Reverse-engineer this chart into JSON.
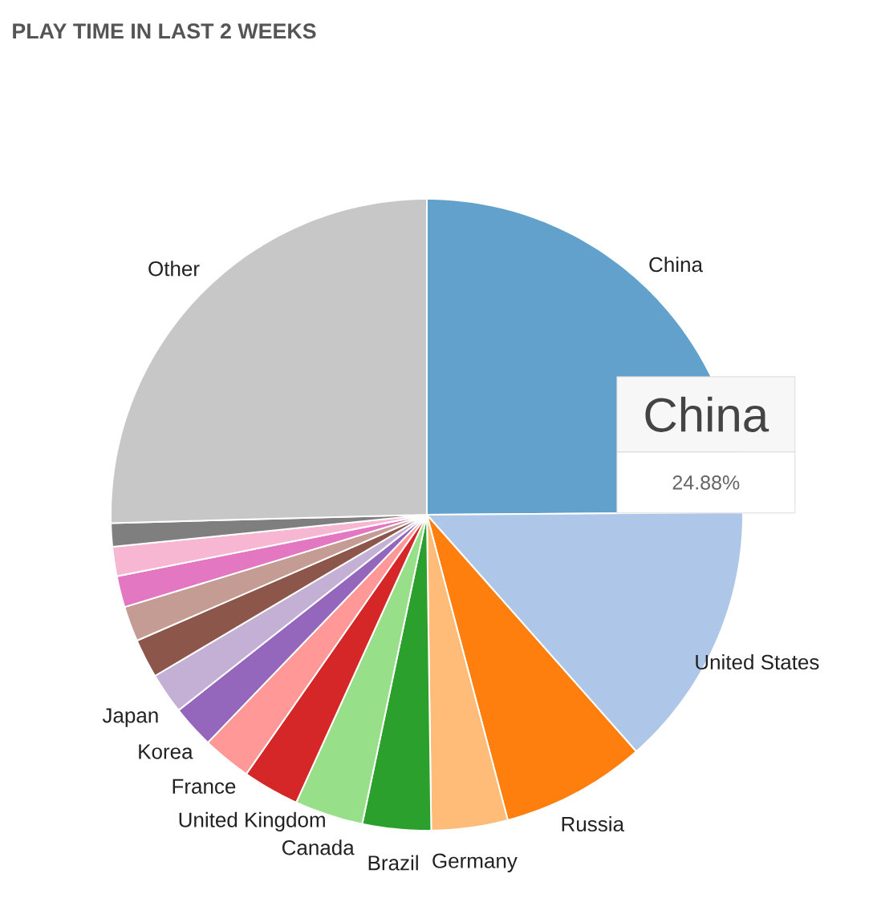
{
  "chart_data": {
    "type": "pie",
    "title": "PLAY TIME IN LAST 2 WEEKS",
    "categories": [
      "China",
      "United States",
      "Russia",
      "Germany",
      "Brazil",
      "Canada",
      "United Kingdom",
      "France",
      "Korea",
      "Japan",
      null,
      null,
      null,
      null,
      null,
      "Other"
    ],
    "values": [
      24.88,
      13.6,
      7.4,
      3.9,
      3.5,
      3.5,
      2.9,
      2.5,
      2.2,
      2.1,
      2.0,
      1.8,
      1.6,
      1.5,
      1.2,
      25.42
    ],
    "colors": [
      "#63a1cd",
      "#aec7e8",
      "#ff7f0e",
      "#ffbb78",
      "#2ca02c",
      "#98df8a",
      "#d62728",
      "#ff9896",
      "#9467bd",
      "#c5b0d5",
      "#8c564b",
      "#c49c94",
      "#e377c2",
      "#f7b6d2",
      "#7f7f7f",
      "#c7c7c7"
    ],
    "value_labels": [
      "24.88%",
      null,
      null,
      null,
      null,
      null,
      null,
      null,
      null,
      null,
      null,
      null,
      null,
      null,
      null,
      null
    ],
    "annotations": [
      "China"
    ]
  }
}
